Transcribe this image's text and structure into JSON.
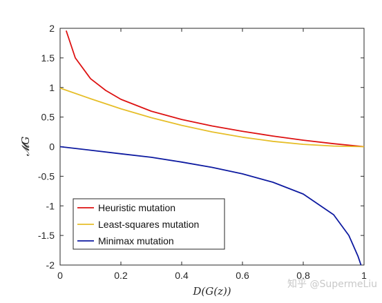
{
  "watermark": "知乎 @SupermeLiu",
  "chart_data": {
    "type": "line",
    "xlabel": "D(G(z))",
    "ylabel": "𝓜G",
    "xlim": [
      0,
      1
    ],
    "ylim": [
      -2,
      2
    ],
    "x_ticks": [
      "0",
      "0.2",
      "0.4",
      "0.6",
      "0.8",
      "1"
    ],
    "y_ticks": [
      "2",
      "1.5",
      "1",
      "0.5",
      "0",
      "-0.5",
      "-1",
      "-1.5",
      "-2"
    ],
    "grid": false,
    "legend_position": "bottom-left",
    "series": [
      {
        "name": "Heuristic mutation",
        "color": "#dd1111",
        "x": [
          0.02,
          0.05,
          0.1,
          0.15,
          0.2,
          0.3,
          0.4,
          0.5,
          0.6,
          0.7,
          0.8,
          0.9,
          1.0
        ],
        "y": [
          1.96,
          1.5,
          1.15,
          0.95,
          0.8,
          0.6,
          0.46,
          0.35,
          0.26,
          0.18,
          0.11,
          0.05,
          0.0
        ]
      },
      {
        "name": "Least-squares mutation",
        "color": "#e6be28",
        "x": [
          0,
          0.1,
          0.2,
          0.3,
          0.4,
          0.5,
          0.6,
          0.7,
          0.8,
          0.9,
          1.0
        ],
        "y": [
          0.99,
          0.81,
          0.64,
          0.49,
          0.36,
          0.25,
          0.16,
          0.09,
          0.04,
          0.01,
          0.0
        ]
      },
      {
        "name": "Minimax mutation",
        "color": "#0d1aa0",
        "x": [
          0,
          0.1,
          0.2,
          0.3,
          0.4,
          0.5,
          0.6,
          0.7,
          0.8,
          0.9,
          0.95,
          0.98,
          0.99
        ],
        "y": [
          0.0,
          -0.06,
          -0.12,
          -0.18,
          -0.26,
          -0.35,
          -0.46,
          -0.6,
          -0.8,
          -1.15,
          -1.5,
          -1.85,
          -2.0
        ]
      }
    ]
  }
}
